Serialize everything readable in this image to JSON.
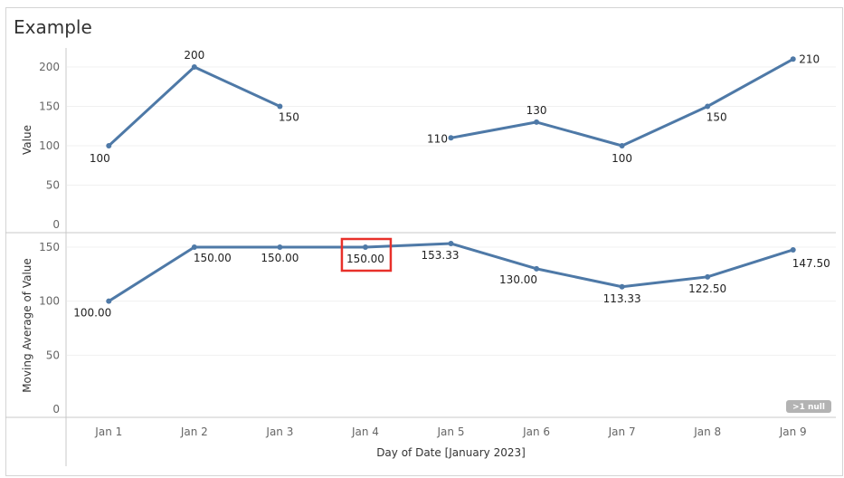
{
  "title": "Example",
  "chart_data": [
    {
      "type": "line",
      "categories": [
        "Jan 1",
        "Jan 2",
        "Jan 3",
        "Jan 4",
        "Jan 5",
        "Jan 6",
        "Jan 7",
        "Jan 8",
        "Jan 9"
      ],
      "values": [
        100,
        200,
        150,
        null,
        110,
        130,
        100,
        150,
        210
      ],
      "value_labels": [
        "100",
        "200",
        "150",
        "",
        "110",
        "130",
        "100",
        "150",
        "210"
      ],
      "ylabel": "Value",
      "ylim": [
        0,
        225
      ],
      "yticks": [
        0,
        50,
        100,
        150,
        200
      ],
      "color": "#4e79a7"
    },
    {
      "type": "line",
      "categories": [
        "Jan 1",
        "Jan 2",
        "Jan 3",
        "Jan 4",
        "Jan 5",
        "Jan 6",
        "Jan 7",
        "Jan 8",
        "Jan 9"
      ],
      "values": [
        100.0,
        150.0,
        150.0,
        150.0,
        153.33,
        130.0,
        113.33,
        122.5,
        147.5
      ],
      "value_labels": [
        "100.00",
        "150.00",
        "150.00",
        "150.00",
        "153.33",
        "130.00",
        "113.33",
        "122.50",
        "147.50"
      ],
      "ylabel": "Moving Average of Value",
      "ylim": [
        0,
        163
      ],
      "yticks": [
        0,
        50,
        100,
        150
      ],
      "color": "#4e79a7",
      "highlighted_category": "Jan 4",
      "highlight_color": "#e8302a",
      "null_indicator": ">1 null"
    }
  ],
  "xlabel": "Day of Date [January 2023]"
}
